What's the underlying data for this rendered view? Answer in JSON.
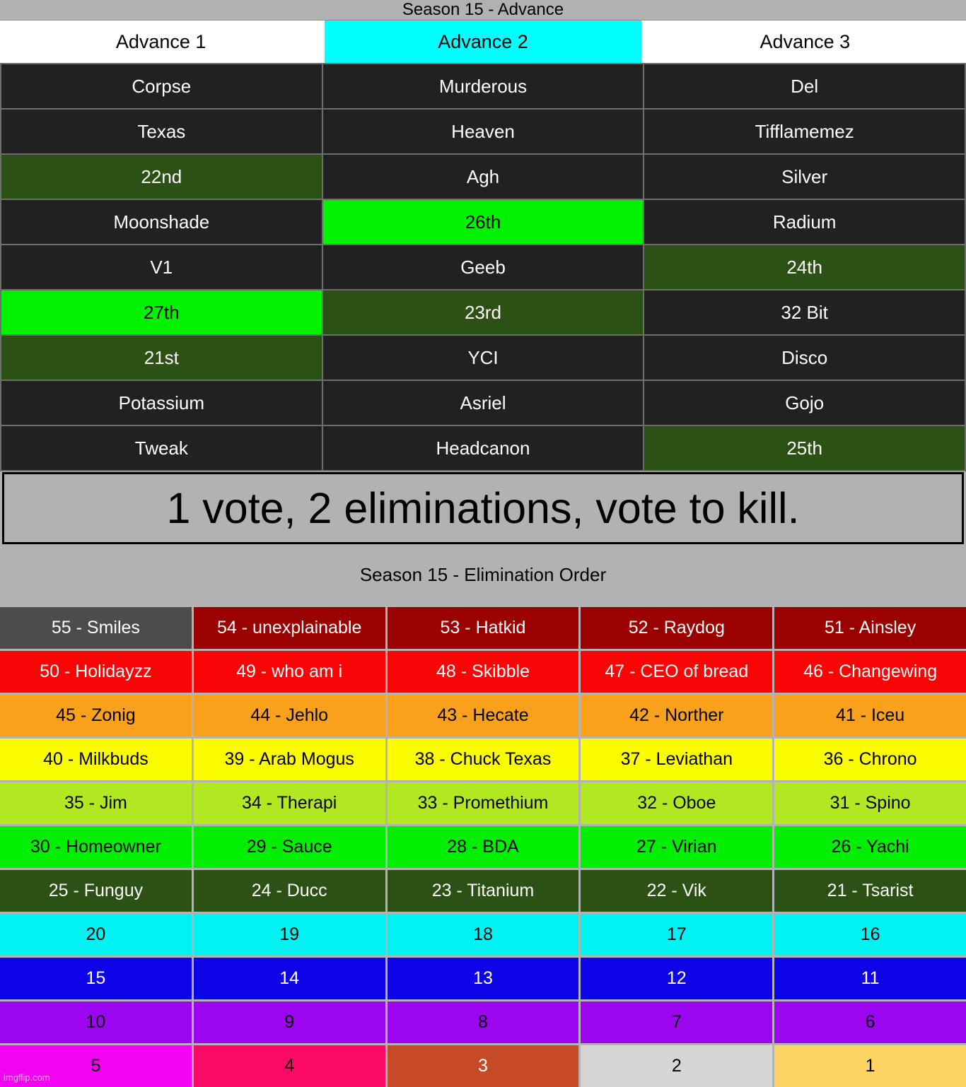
{
  "page": {
    "banner_text": "1 vote, 2 eliminations, vote to kill.",
    "watermark": "imgflip.com",
    "background_color": "#b2b2b2"
  },
  "palette": {
    "dark": {
      "bg": "#212121",
      "fg": "#ffffff"
    },
    "dgreen": {
      "bg": "#2b5114",
      "fg": "#ffffff"
    },
    "bgreen": {
      "bg": "#00f200",
      "fg": "#000000"
    },
    "hwhite": {
      "bg": "#ffffff",
      "fg": "#000000"
    },
    "hcyan": {
      "bg": "#00ffff",
      "fg": "#000000"
    },
    "gray55": {
      "bg": "#4c4c4c",
      "fg": "#ffffff"
    },
    "darkred": {
      "bg": "#9c0101",
      "fg": "#ffffff"
    },
    "red": {
      "bg": "#f90505",
      "fg": "#ffffff"
    },
    "orange": {
      "bg": "#faa11b",
      "fg": "#000000"
    },
    "yellow": {
      "bg": "#fcfc00",
      "fg": "#000000"
    },
    "ygreen": {
      "bg": "#b1e822",
      "fg": "#000000"
    },
    "green": {
      "bg": "#02ee02",
      "fg": "#000000"
    },
    "cyan": {
      "bg": "#00f2f2",
      "fg": "#000000"
    },
    "blue": {
      "bg": "#0e04e8",
      "fg": "#ffffff"
    },
    "purple": {
      "bg": "#9c05f0",
      "fg": "#000000"
    },
    "magenta": {
      "bg": "#f203f2",
      "fg": "#000000"
    },
    "pink": {
      "bg": "#fa0a64",
      "fg": "#000000"
    },
    "brick": {
      "bg": "#c64a26",
      "fg": "#ffffff"
    },
    "lgray": {
      "bg": "#d6d6d6",
      "fg": "#000000"
    },
    "gold": {
      "bg": "#fcd464",
      "fg": "#000000"
    }
  },
  "advance_table": {
    "title": "Season 15 - Advance",
    "header_rows": [
      [
        {
          "t": "Advance 1",
          "c": "hwhite"
        },
        {
          "t": "Advance 2",
          "c": "hcyan"
        },
        {
          "t": "Advance 3",
          "c": "hwhite"
        }
      ]
    ],
    "rows": [
      [
        {
          "t": "Corpse",
          "c": "dark"
        },
        {
          "t": "Murderous",
          "c": "dark"
        },
        {
          "t": "Del",
          "c": "dark"
        }
      ],
      [
        {
          "t": "Texas",
          "c": "dark"
        },
        {
          "t": "Heaven",
          "c": "dark"
        },
        {
          "t": "Tifflamemez",
          "c": "dark"
        }
      ],
      [
        {
          "t": "22nd",
          "c": "dgreen"
        },
        {
          "t": "Agh",
          "c": "dark"
        },
        {
          "t": "Silver",
          "c": "dark"
        }
      ],
      [
        {
          "t": "Moonshade",
          "c": "dark"
        },
        {
          "t": "26th",
          "c": "bgreen"
        },
        {
          "t": "Radium",
          "c": "dark"
        }
      ],
      [
        {
          "t": "V1",
          "c": "dark"
        },
        {
          "t": "Geeb",
          "c": "dark"
        },
        {
          "t": "24th",
          "c": "dgreen"
        }
      ],
      [
        {
          "t": "27th",
          "c": "bgreen"
        },
        {
          "t": "23rd",
          "c": "dgreen"
        },
        {
          "t": "32 Bit",
          "c": "dark"
        }
      ],
      [
        {
          "t": "21st",
          "c": "dgreen"
        },
        {
          "t": "YCI",
          "c": "dark"
        },
        {
          "t": "Disco",
          "c": "dark"
        }
      ],
      [
        {
          "t": "Potassium",
          "c": "dark"
        },
        {
          "t": "Asriel",
          "c": "dark"
        },
        {
          "t": "Gojo",
          "c": "dark"
        }
      ],
      [
        {
          "t": "Tweak",
          "c": "dark"
        },
        {
          "t": "Headcanon",
          "c": "dark"
        },
        {
          "t": "25th",
          "c": "dgreen"
        }
      ]
    ]
  },
  "elimination_table": {
    "title": "Season 15 - Elimination Order",
    "rows": [
      [
        {
          "t": "55 - Smiles",
          "c": "gray55"
        },
        {
          "t": "54 - unexplainable",
          "c": "darkred"
        },
        {
          "t": "53 - Hatkid",
          "c": "darkred"
        },
        {
          "t": "52 - Raydog",
          "c": "darkred"
        },
        {
          "t": "51 - Ainsley",
          "c": "darkred"
        }
      ],
      [
        {
          "t": "50 - Holidayzz",
          "c": "red"
        },
        {
          "t": "49 - who am i",
          "c": "red"
        },
        {
          "t": "48 - Skibble",
          "c": "red"
        },
        {
          "t": "47 - CEO of bread",
          "c": "red"
        },
        {
          "t": "46 - Changewing",
          "c": "red"
        }
      ],
      [
        {
          "t": "45 - Zonig",
          "c": "orange"
        },
        {
          "t": "44 - Jehlo",
          "c": "orange"
        },
        {
          "t": "43 - Hecate",
          "c": "orange"
        },
        {
          "t": "42 - Norther",
          "c": "orange"
        },
        {
          "t": "41 - Iceu",
          "c": "orange"
        }
      ],
      [
        {
          "t": "40 - Milkbuds",
          "c": "yellow"
        },
        {
          "t": "39 - Arab Mogus",
          "c": "yellow"
        },
        {
          "t": "38 - Chuck Texas",
          "c": "yellow"
        },
        {
          "t": "37 - Leviathan",
          "c": "yellow"
        },
        {
          "t": "36 - Chrono",
          "c": "yellow"
        }
      ],
      [
        {
          "t": "35 - Jim",
          "c": "ygreen"
        },
        {
          "t": "34 - Therapi",
          "c": "ygreen"
        },
        {
          "t": "33 - Promethium",
          "c": "ygreen"
        },
        {
          "t": "32 - Oboe",
          "c": "ygreen"
        },
        {
          "t": "31 - Spino",
          "c": "ygreen"
        }
      ],
      [
        {
          "t": "30 - Homeowner",
          "c": "green"
        },
        {
          "t": "29 - Sauce",
          "c": "green"
        },
        {
          "t": "28 - BDA",
          "c": "green"
        },
        {
          "t": "27 - Virian",
          "c": "green"
        },
        {
          "t": "26 - Yachi",
          "c": "green"
        }
      ],
      [
        {
          "t": "25 - Funguy",
          "c": "dgreen"
        },
        {
          "t": "24 - Ducc",
          "c": "dgreen"
        },
        {
          "t": "23 - Titanium",
          "c": "dgreen"
        },
        {
          "t": "22 - Vik",
          "c": "dgreen"
        },
        {
          "t": "21 - Tsarist",
          "c": "dgreen"
        }
      ],
      [
        {
          "t": "20",
          "c": "cyan"
        },
        {
          "t": "19",
          "c": "cyan"
        },
        {
          "t": "18",
          "c": "cyan"
        },
        {
          "t": "17",
          "c": "cyan"
        },
        {
          "t": "16",
          "c": "cyan"
        }
      ],
      [
        {
          "t": "15",
          "c": "blue"
        },
        {
          "t": "14",
          "c": "blue"
        },
        {
          "t": "13",
          "c": "blue"
        },
        {
          "t": "12",
          "c": "blue"
        },
        {
          "t": "11",
          "c": "blue"
        }
      ],
      [
        {
          "t": "10",
          "c": "purple"
        },
        {
          "t": "9",
          "c": "purple"
        },
        {
          "t": "8",
          "c": "purple"
        },
        {
          "t": "7",
          "c": "purple"
        },
        {
          "t": "6",
          "c": "purple"
        }
      ],
      [
        {
          "t": "5",
          "c": "magenta"
        },
        {
          "t": "4",
          "c": "pink"
        },
        {
          "t": "3",
          "c": "brick"
        },
        {
          "t": "2",
          "c": "lgray"
        },
        {
          "t": "1",
          "c": "gold"
        }
      ]
    ]
  },
  "chart_data": [
    {
      "type": "table",
      "title": "Season 15 - Advance",
      "columns": [
        "Advance 1",
        "Advance 2",
        "Advance 3"
      ],
      "rows": [
        [
          "Corpse",
          "Murderous",
          "Del"
        ],
        [
          "Texas",
          "Heaven",
          "Tifflamemez"
        ],
        [
          "22nd",
          "Agh",
          "Silver"
        ],
        [
          "Moonshade",
          "26th",
          "Radium"
        ],
        [
          "V1",
          "Geeb",
          "24th"
        ],
        [
          "27th",
          "23rd",
          "32 Bit"
        ],
        [
          "21st",
          "YCI",
          "Disco"
        ],
        [
          "Potassium",
          "Asriel",
          "Gojo"
        ],
        [
          "Tweak",
          "Headcanon",
          "25th"
        ]
      ]
    },
    {
      "type": "table",
      "title": "Season 15 - Elimination Order",
      "rows": [
        [
          "55 - Smiles",
          "54 - unexplainable",
          "53 - Hatkid",
          "52 - Raydog",
          "51 - Ainsley"
        ],
        [
          "50 - Holidayzz",
          "49 - who am i",
          "48 - Skibble",
          "47 - CEO of bread",
          "46 - Changewing"
        ],
        [
          "45 - Zonig",
          "44 - Jehlo",
          "43 - Hecate",
          "42 - Norther",
          "41 - Iceu"
        ],
        [
          "40 - Milkbuds",
          "39 - Arab Mogus",
          "38 - Chuck Texas",
          "37 - Leviathan",
          "36 - Chrono"
        ],
        [
          "35 - Jim",
          "34 - Therapi",
          "33 - Promethium",
          "32 - Oboe",
          "31 - Spino"
        ],
        [
          "30 - Homeowner",
          "29 - Sauce",
          "28 - BDA",
          "27 - Virian",
          "26 - Yachi"
        ],
        [
          "25 - Funguy",
          "24 - Ducc",
          "23 - Titanium",
          "22 - Vik",
          "21 - Tsarist"
        ],
        [
          "20",
          "19",
          "18",
          "17",
          "16"
        ],
        [
          "15",
          "14",
          "13",
          "12",
          "11"
        ],
        [
          "10",
          "9",
          "8",
          "7",
          "6"
        ],
        [
          "5",
          "4",
          "3",
          "2",
          "1"
        ]
      ]
    }
  ]
}
